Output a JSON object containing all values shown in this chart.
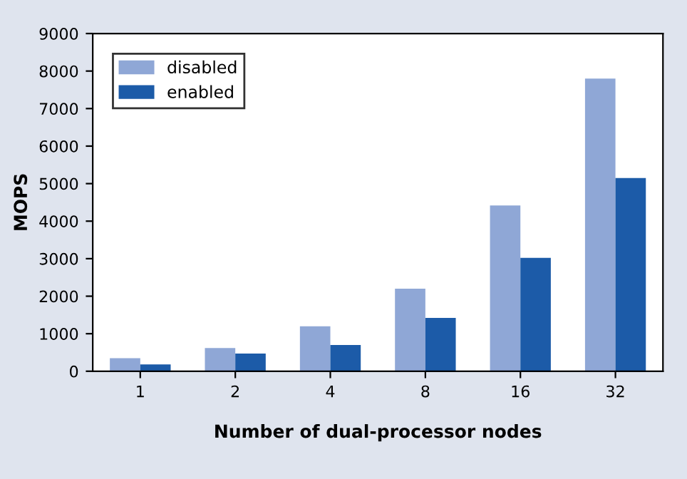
{
  "chart_data": {
    "type": "bar",
    "xlabel": "Number of dual-processor nodes",
    "ylabel": "MOPS",
    "categories": [
      "1",
      "2",
      "4",
      "8",
      "16",
      "32"
    ],
    "series": [
      {
        "name": "disabled",
        "color": "#8fa7d6",
        "values": [
          350,
          620,
          1200,
          2200,
          4420,
          7800
        ]
      },
      {
        "name": "enabled",
        "color": "#1c5ba8",
        "values": [
          180,
          470,
          700,
          1420,
          3020,
          5150
        ]
      }
    ],
    "ylim": [
      0,
      9000
    ],
    "yticks": [
      0,
      1000,
      2000,
      3000,
      4000,
      5000,
      6000,
      7000,
      8000,
      9000
    ],
    "grid": false,
    "legend": "top left"
  }
}
